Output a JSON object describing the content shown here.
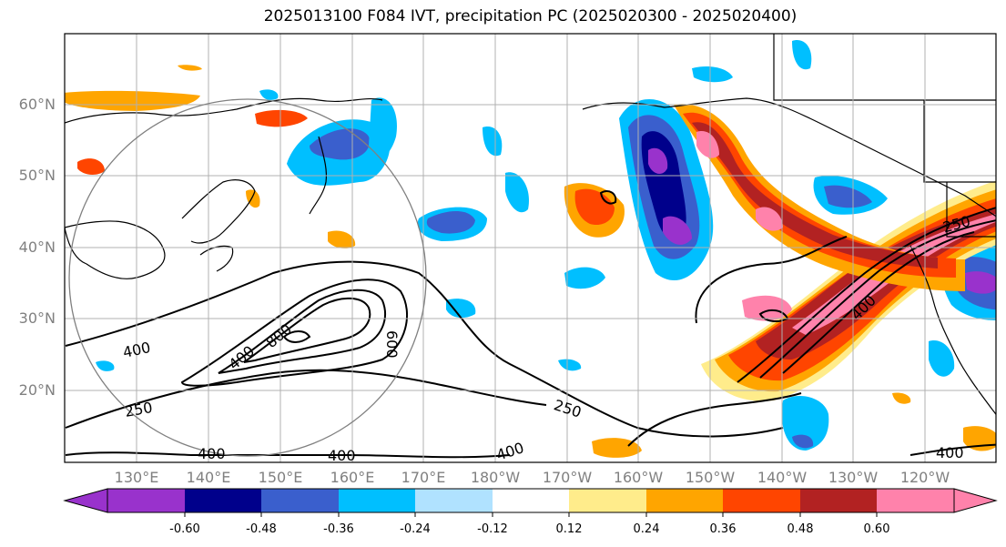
{
  "title": "2025013100 F084 IVT, precipitation PC (2025020300 - 2025020400)",
  "lat_labels": [
    "60°N",
    "50°N",
    "40°N",
    "30°N",
    "20°N"
  ],
  "lon_labels": [
    "130°E",
    "140°E",
    "150°E",
    "160°E",
    "170°E",
    "180°W",
    "170°W",
    "160°W",
    "150°W",
    "140°W",
    "130°W",
    "120°W"
  ],
  "ivt_contour_labels": [
    "250",
    "400",
    "400",
    "800",
    "600",
    "250",
    "400",
    "400",
    "400",
    "250",
    "400",
    "400"
  ],
  "colorbar": {
    "tick_labels": [
      "-0.60",
      "-0.48",
      "-0.36",
      "-0.24",
      "-0.12",
      "0.12",
      "0.24",
      "0.36",
      "0.48",
      "0.60"
    ],
    "colors": [
      "#9932cc",
      "#00008b",
      "#3a5fcd",
      "#00bfff",
      "#b0e2ff",
      "#ffffff",
      "#ffec8b",
      "#ffa500",
      "#ff4500",
      "#b22222",
      "#ff82ab"
    ]
  }
}
